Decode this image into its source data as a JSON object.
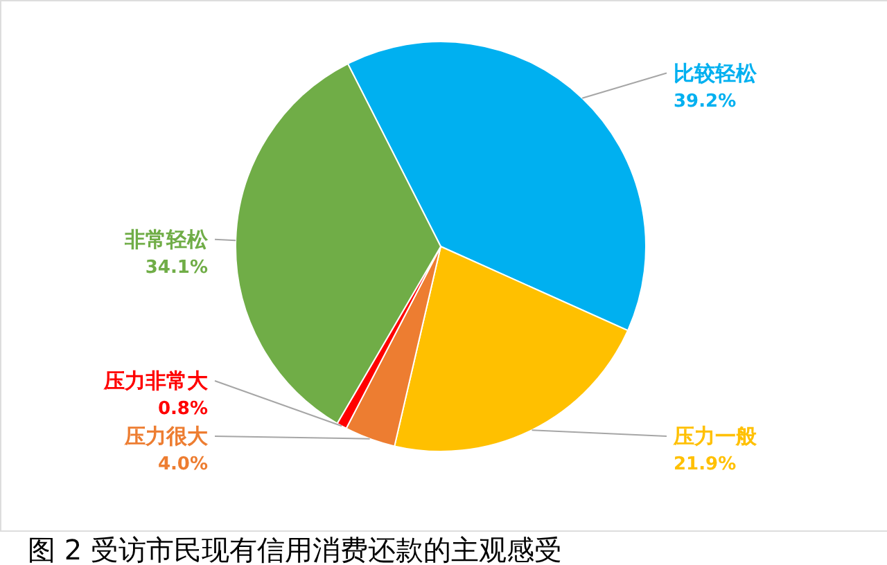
{
  "chart_data": {
    "type": "pie",
    "title": "图 2 受访市民现有信用消费还款的主观感受",
    "categories": [
      "比较轻松",
      "压力一般",
      "压力很大",
      "压力非常大",
      "非常轻松"
    ],
    "values": [
      39.2,
      21.9,
      4.0,
      0.8,
      34.1
    ],
    "colors": [
      "#00b0f0",
      "#ffc000",
      "#ed7d31",
      "#ff0000",
      "#70ad47"
    ],
    "value_labels": [
      "39.2%",
      "21.9%",
      "4.0%",
      "0.8%",
      "34.1%"
    ]
  }
}
